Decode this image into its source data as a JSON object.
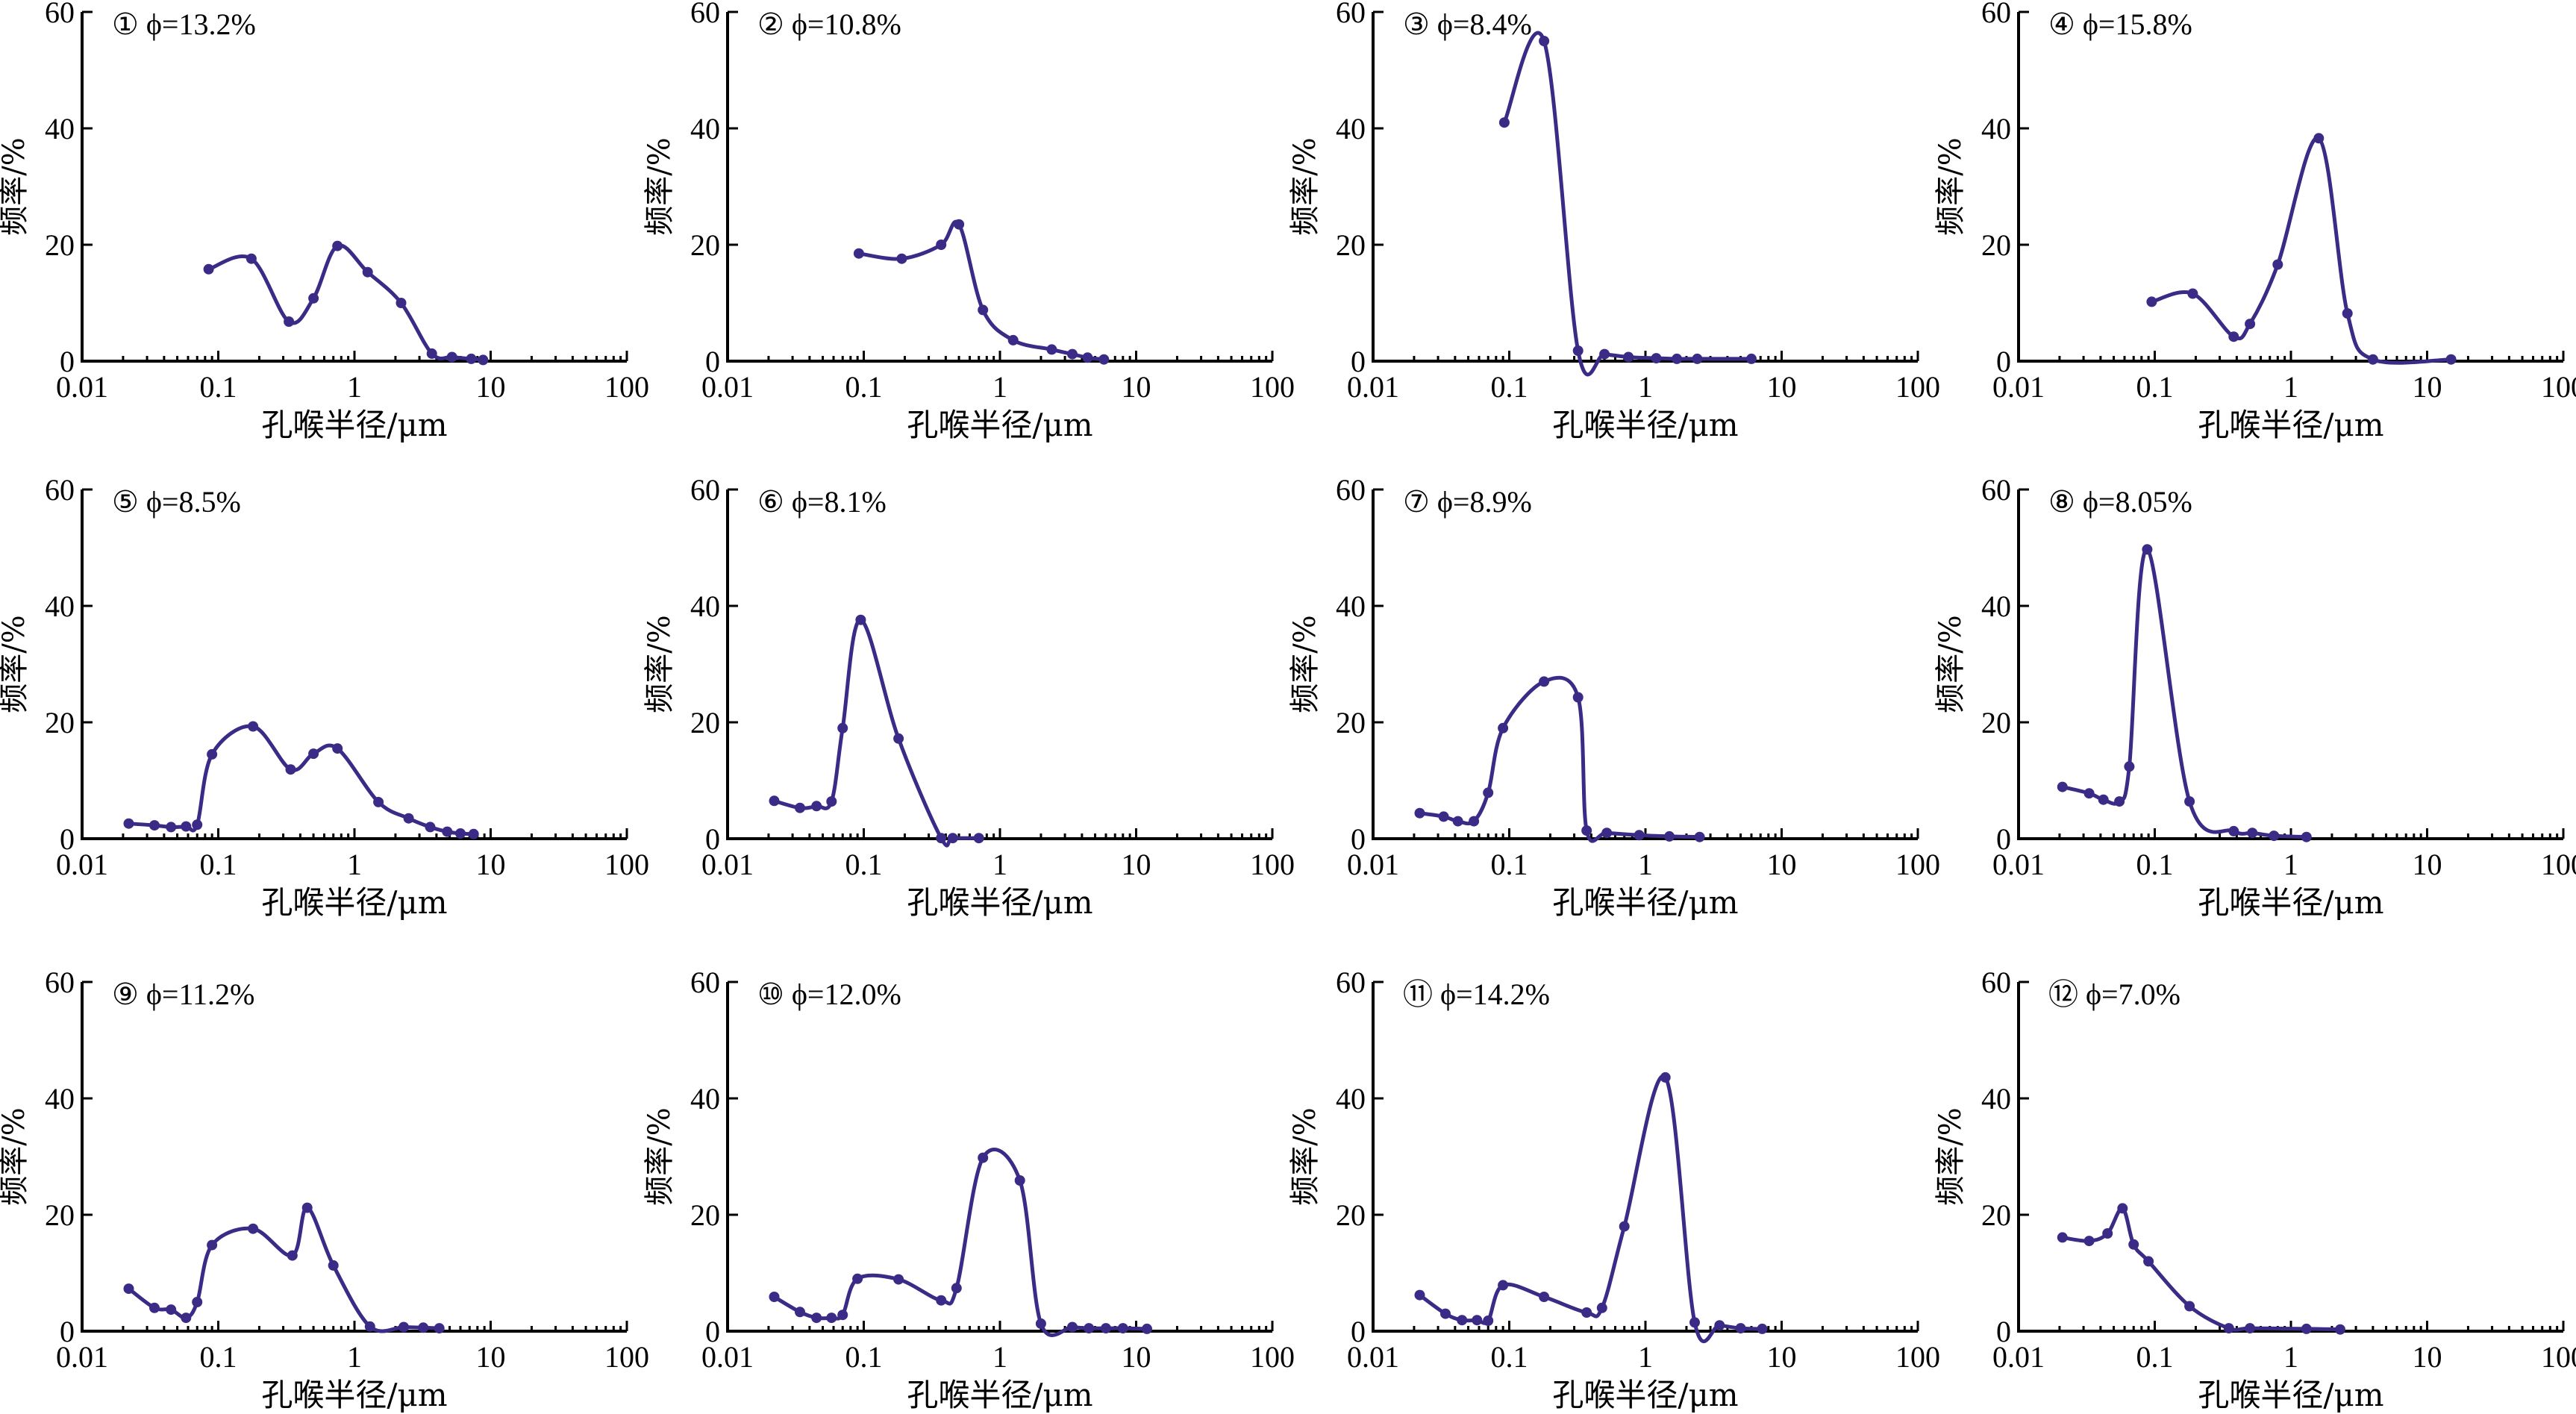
{
  "chart_data": [
    {
      "type": "line",
      "annotation": "① ϕ=13.2%",
      "xlabel": "孔喉半径/μm",
      "ylabel": "频率/%",
      "xscale": "log",
      "xlim": [
        0.01,
        100
      ],
      "ylim": [
        0,
        60
      ],
      "x": [
        0.085,
        0.175,
        0.33,
        0.5,
        0.75,
        1.25,
        2.2,
        3.7,
        5.2,
        7.2,
        8.8
      ],
      "y": [
        15.8,
        17.6,
        6.8,
        10.8,
        19.8,
        15.3,
        10.0,
        1.3,
        0.7,
        0.4,
        0.2
      ]
    },
    {
      "type": "line",
      "annotation": "② ϕ=10.8%",
      "xlabel": "孔喉半径/μm",
      "ylabel": "频率/%",
      "xscale": "log",
      "xlim": [
        0.01,
        100
      ],
      "ylim": [
        0,
        60
      ],
      "x": [
        0.092,
        0.19,
        0.37,
        0.5,
        0.75,
        1.25,
        2.4,
        3.4,
        4.4,
        5.8
      ],
      "y": [
        18.5,
        17.6,
        20.0,
        23.5,
        8.8,
        3.6,
        2.0,
        1.2,
        0.6,
        0.3
      ]
    },
    {
      "type": "line",
      "annotation": "③ ϕ=8.4%",
      "xlabel": "孔喉半径/μm",
      "ylabel": "频率/%",
      "xscale": "log",
      "xlim": [
        0.01,
        100
      ],
      "ylim": [
        0,
        60
      ],
      "x": [
        0.092,
        0.18,
        0.32,
        0.5,
        0.75,
        1.2,
        1.7,
        2.4,
        6.0
      ],
      "y": [
        41.0,
        55.0,
        1.8,
        1.2,
        0.7,
        0.5,
        0.4,
        0.4,
        0.4
      ]
    },
    {
      "type": "line",
      "annotation": "④ ϕ=15.8%",
      "xlabel": "孔喉半径/μm",
      "ylabel": "频率/%",
      "xscale": "log",
      "xlim": [
        0.01,
        100
      ],
      "ylim": [
        0,
        60
      ],
      "x": [
        0.095,
        0.19,
        0.38,
        0.5,
        0.8,
        1.6,
        2.6,
        4.0,
        15.0
      ],
      "y": [
        10.2,
        11.6,
        4.2,
        6.4,
        16.6,
        38.3,
        8.2,
        0.3,
        0.3
      ]
    },
    {
      "type": "line",
      "annotation": "⑤ ϕ=8.5%",
      "xlabel": "孔喉半径/μm",
      "ylabel": "频率/%",
      "xscale": "log",
      "xlim": [
        0.01,
        100
      ],
      "ylim": [
        0,
        60
      ],
      "x": [
        0.022,
        0.034,
        0.045,
        0.058,
        0.07,
        0.09,
        0.18,
        0.34,
        0.5,
        0.75,
        1.5,
        2.5,
        3.6,
        4.8,
        6.0,
        7.5
      ],
      "y": [
        2.6,
        2.3,
        2.0,
        2.1,
        2.4,
        14.5,
        19.3,
        11.9,
        14.6,
        15.5,
        6.3,
        3.5,
        2.0,
        1.2,
        0.9,
        0.8
      ]
    },
    {
      "type": "line",
      "annotation": "⑥ ϕ=8.1%",
      "xlabel": "孔喉半径/μm",
      "ylabel": "频率/%",
      "xscale": "log",
      "xlim": [
        0.01,
        100
      ],
      "ylim": [
        0,
        60
      ],
      "x": [
        0.022,
        0.034,
        0.045,
        0.058,
        0.07,
        0.095,
        0.18,
        0.37,
        0.45,
        0.7
      ],
      "y": [
        6.5,
        5.3,
        5.6,
        6.4,
        19.0,
        37.6,
        17.2,
        0.1,
        0.1,
        0.1
      ]
    },
    {
      "type": "line",
      "annotation": "⑦ ϕ=8.9%",
      "xlabel": "孔喉半径/μm",
      "ylabel": "频率/%",
      "xscale": "log",
      "xlim": [
        0.01,
        100
      ],
      "ylim": [
        0,
        60
      ],
      "x": [
        0.022,
        0.033,
        0.042,
        0.055,
        0.07,
        0.09,
        0.18,
        0.32,
        0.37,
        0.52,
        0.9,
        1.5,
        2.5
      ],
      "y": [
        4.4,
        3.8,
        3.0,
        3.0,
        7.9,
        19.0,
        27.0,
        24.3,
        1.4,
        1.0,
        0.6,
        0.4,
        0.3
      ]
    },
    {
      "type": "line",
      "annotation": "⑧ ϕ=8.05%",
      "xlabel": "孔喉半径/μm",
      "ylabel": "频率/%",
      "xscale": "log",
      "xlim": [
        0.01,
        100
      ],
      "ylim": [
        0,
        60
      ],
      "x": [
        0.021,
        0.033,
        0.042,
        0.055,
        0.065,
        0.088,
        0.18,
        0.38,
        0.52,
        0.75,
        1.3
      ],
      "y": [
        8.9,
        7.8,
        6.7,
        6.4,
        12.4,
        49.7,
        6.4,
        1.3,
        1.0,
        0.5,
        0.3
      ]
    },
    {
      "type": "line",
      "annotation": "⑨ ϕ=11.2%",
      "xlabel": "孔喉半径/μm",
      "ylabel": "频率/%",
      "xscale": "log",
      "xlim": [
        0.01,
        100
      ],
      "ylim": [
        0,
        60
      ],
      "x": [
        0.022,
        0.034,
        0.045,
        0.058,
        0.07,
        0.09,
        0.18,
        0.35,
        0.45,
        0.7,
        1.3,
        2.3,
        3.2,
        4.2
      ],
      "y": [
        7.3,
        4.0,
        3.7,
        2.3,
        5.0,
        14.8,
        17.6,
        13.0,
        21.2,
        11.3,
        0.8,
        0.7,
        0.6,
        0.5
      ]
    },
    {
      "type": "line",
      "annotation": "⑩ ϕ=12.0%",
      "xlabel": "孔喉半径/μm",
      "ylabel": "频率/%",
      "xscale": "log",
      "xlim": [
        0.01,
        100
      ],
      "ylim": [
        0,
        60
      ],
      "x": [
        0.022,
        0.034,
        0.045,
        0.058,
        0.07,
        0.09,
        0.18,
        0.37,
        0.48,
        0.75,
        1.4,
        2.0,
        3.4,
        4.5,
        6.0,
        8.0,
        12.0
      ],
      "y": [
        5.9,
        3.3,
        2.3,
        2.3,
        2.8,
        9.0,
        8.9,
        5.3,
        7.4,
        29.8,
        25.9,
        1.3,
        0.7,
        0.5,
        0.5,
        0.5,
        0.4
      ]
    },
    {
      "type": "line",
      "annotation": "⑪ ϕ=14.2%",
      "xlabel": "孔喉半径/μm",
      "ylabel": "频率/%",
      "xscale": "log",
      "xlim": [
        0.01,
        100
      ],
      "ylim": [
        0,
        60
      ],
      "x": [
        0.022,
        0.034,
        0.045,
        0.058,
        0.07,
        0.09,
        0.18,
        0.37,
        0.48,
        0.7,
        1.4,
        2.3,
        3.5,
        5.0,
        7.2
      ],
      "y": [
        6.2,
        3.0,
        1.9,
        1.9,
        1.8,
        7.9,
        5.9,
        3.2,
        4.0,
        18.0,
        43.6,
        1.5,
        1.0,
        0.5,
        0.4
      ]
    },
    {
      "type": "line",
      "annotation": "⑫ ϕ=7.0%",
      "xlabel": "孔喉半径/μm",
      "ylabel": "频率/%",
      "xscale": "log",
      "xlim": [
        0.01,
        100
      ],
      "ylim": [
        0,
        60
      ],
      "x": [
        0.021,
        0.033,
        0.045,
        0.058,
        0.07,
        0.09,
        0.18,
        0.35,
        0.5,
        1.3,
        2.3
      ],
      "y": [
        16.1,
        15.5,
        16.8,
        21.1,
        14.9,
        12.0,
        4.3,
        0.5,
        0.5,
        0.4,
        0.3
      ]
    }
  ],
  "xtick_labels": [
    "0.01",
    "0.1",
    "1",
    "10",
    "100"
  ],
  "ytick_labels": [
    "0",
    "20",
    "40",
    "60"
  ]
}
